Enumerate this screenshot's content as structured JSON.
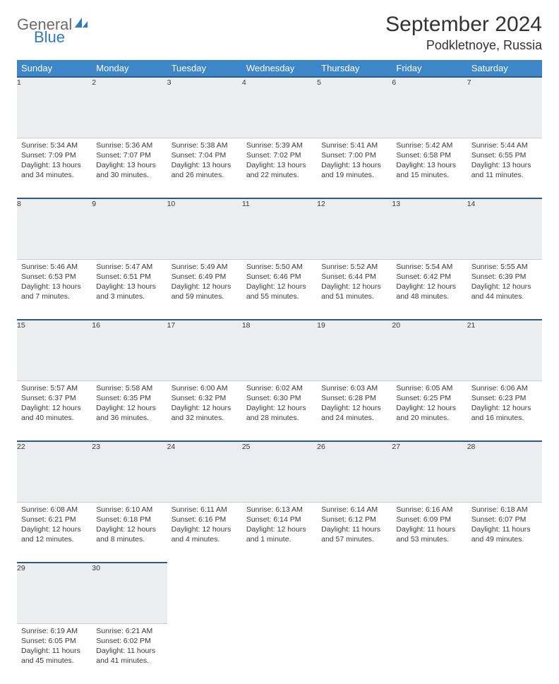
{
  "logo": {
    "text1": "General",
    "text2": "Blue",
    "icon_color": "#2f7bbf"
  },
  "header": {
    "month": "September 2024",
    "location": "Podkletnoye, Russia"
  },
  "colors": {
    "header_bg": "#3d87c9",
    "header_fg": "#ffffff",
    "daynum_bg": "#ebedef",
    "daynum_border_top": "#2c5a87",
    "daynum_border_bottom": "#c8cdd2",
    "page_bg": "#ffffff",
    "text": "#333333"
  },
  "columns": [
    "Sunday",
    "Monday",
    "Tuesday",
    "Wednesday",
    "Thursday",
    "Friday",
    "Saturday"
  ],
  "weeks": [
    [
      {
        "n": "1",
        "sunrise": "5:34 AM",
        "sunset": "7:09 PM",
        "daylight": "13 hours and 34 minutes."
      },
      {
        "n": "2",
        "sunrise": "5:36 AM",
        "sunset": "7:07 PM",
        "daylight": "13 hours and 30 minutes."
      },
      {
        "n": "3",
        "sunrise": "5:38 AM",
        "sunset": "7:04 PM",
        "daylight": "13 hours and 26 minutes."
      },
      {
        "n": "4",
        "sunrise": "5:39 AM",
        "sunset": "7:02 PM",
        "daylight": "13 hours and 22 minutes."
      },
      {
        "n": "5",
        "sunrise": "5:41 AM",
        "sunset": "7:00 PM",
        "daylight": "13 hours and 19 minutes."
      },
      {
        "n": "6",
        "sunrise": "5:42 AM",
        "sunset": "6:58 PM",
        "daylight": "13 hours and 15 minutes."
      },
      {
        "n": "7",
        "sunrise": "5:44 AM",
        "sunset": "6:55 PM",
        "daylight": "13 hours and 11 minutes."
      }
    ],
    [
      {
        "n": "8",
        "sunrise": "5:46 AM",
        "sunset": "6:53 PM",
        "daylight": "13 hours and 7 minutes."
      },
      {
        "n": "9",
        "sunrise": "5:47 AM",
        "sunset": "6:51 PM",
        "daylight": "13 hours and 3 minutes."
      },
      {
        "n": "10",
        "sunrise": "5:49 AM",
        "sunset": "6:49 PM",
        "daylight": "12 hours and 59 minutes."
      },
      {
        "n": "11",
        "sunrise": "5:50 AM",
        "sunset": "6:46 PM",
        "daylight": "12 hours and 55 minutes."
      },
      {
        "n": "12",
        "sunrise": "5:52 AM",
        "sunset": "6:44 PM",
        "daylight": "12 hours and 51 minutes."
      },
      {
        "n": "13",
        "sunrise": "5:54 AM",
        "sunset": "6:42 PM",
        "daylight": "12 hours and 48 minutes."
      },
      {
        "n": "14",
        "sunrise": "5:55 AM",
        "sunset": "6:39 PM",
        "daylight": "12 hours and 44 minutes."
      }
    ],
    [
      {
        "n": "15",
        "sunrise": "5:57 AM",
        "sunset": "6:37 PM",
        "daylight": "12 hours and 40 minutes."
      },
      {
        "n": "16",
        "sunrise": "5:58 AM",
        "sunset": "6:35 PM",
        "daylight": "12 hours and 36 minutes."
      },
      {
        "n": "17",
        "sunrise": "6:00 AM",
        "sunset": "6:32 PM",
        "daylight": "12 hours and 32 minutes."
      },
      {
        "n": "18",
        "sunrise": "6:02 AM",
        "sunset": "6:30 PM",
        "daylight": "12 hours and 28 minutes."
      },
      {
        "n": "19",
        "sunrise": "6:03 AM",
        "sunset": "6:28 PM",
        "daylight": "12 hours and 24 minutes."
      },
      {
        "n": "20",
        "sunrise": "6:05 AM",
        "sunset": "6:25 PM",
        "daylight": "12 hours and 20 minutes."
      },
      {
        "n": "21",
        "sunrise": "6:06 AM",
        "sunset": "6:23 PM",
        "daylight": "12 hours and 16 minutes."
      }
    ],
    [
      {
        "n": "22",
        "sunrise": "6:08 AM",
        "sunset": "6:21 PM",
        "daylight": "12 hours and 12 minutes."
      },
      {
        "n": "23",
        "sunrise": "6:10 AM",
        "sunset": "6:18 PM",
        "daylight": "12 hours and 8 minutes."
      },
      {
        "n": "24",
        "sunrise": "6:11 AM",
        "sunset": "6:16 PM",
        "daylight": "12 hours and 4 minutes."
      },
      {
        "n": "25",
        "sunrise": "6:13 AM",
        "sunset": "6:14 PM",
        "daylight": "12 hours and 1 minute."
      },
      {
        "n": "26",
        "sunrise": "6:14 AM",
        "sunset": "6:12 PM",
        "daylight": "11 hours and 57 minutes."
      },
      {
        "n": "27",
        "sunrise": "6:16 AM",
        "sunset": "6:09 PM",
        "daylight": "11 hours and 53 minutes."
      },
      {
        "n": "28",
        "sunrise": "6:18 AM",
        "sunset": "6:07 PM",
        "daylight": "11 hours and 49 minutes."
      }
    ],
    [
      {
        "n": "29",
        "sunrise": "6:19 AM",
        "sunset": "6:05 PM",
        "daylight": "11 hours and 45 minutes."
      },
      {
        "n": "30",
        "sunrise": "6:21 AM",
        "sunset": "6:02 PM",
        "daylight": "11 hours and 41 minutes."
      },
      null,
      null,
      null,
      null,
      null
    ]
  ],
  "labels": {
    "sunrise": "Sunrise: ",
    "sunset": "Sunset: ",
    "daylight": "Daylight: "
  }
}
